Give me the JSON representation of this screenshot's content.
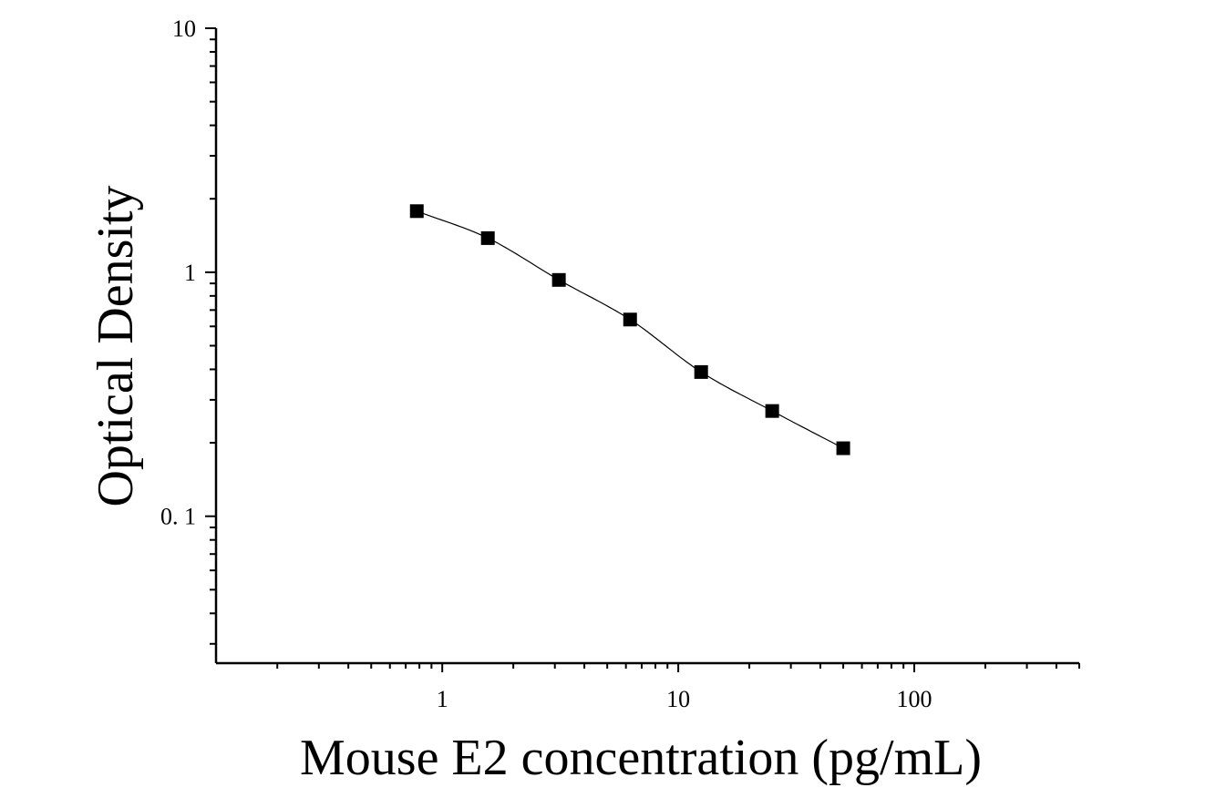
{
  "chart_data": {
    "type": "scatter",
    "title": "",
    "xlabel": "Mouse E2 concentration (pg/mL)",
    "ylabel": "Optical Density",
    "x_scale": "log",
    "y_scale": "log",
    "xlim": [
      0.11,
      500
    ],
    "ylim": [
      0.025,
      10
    ],
    "x_ticks": [
      {
        "value": 1,
        "label": "1"
      },
      {
        "value": 10,
        "label": "10"
      },
      {
        "value": 100,
        "label": "100"
      }
    ],
    "y_ticks": [
      {
        "value": 0.1,
        "label": "0. 1"
      },
      {
        "value": 1,
        "label": "1"
      },
      {
        "value": 10,
        "label": "10"
      }
    ],
    "grid": false,
    "legend": "none",
    "series": [
      {
        "marker": "square",
        "color": "#000000",
        "x": [
          0.78,
          1.56,
          3.12,
          6.25,
          12.5,
          25,
          50
        ],
        "y": [
          1.78,
          1.38,
          0.93,
          0.64,
          0.39,
          0.27,
          0.19
        ]
      }
    ],
    "fit_curve": {
      "type": "smooth-fit",
      "color": "#000000",
      "x_range": [
        0.78,
        50
      ]
    }
  }
}
